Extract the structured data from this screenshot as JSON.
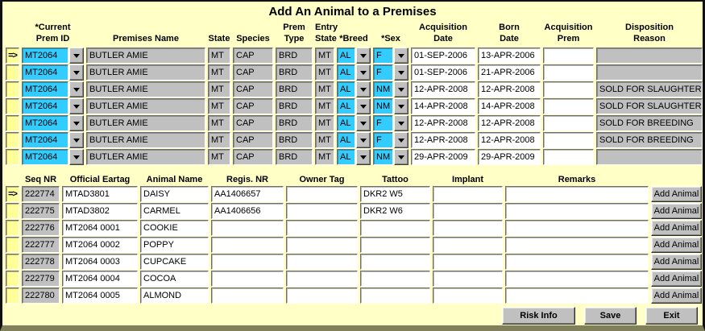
{
  "window": {
    "title": "Add An Animal to a Premises"
  },
  "colors": {
    "background": "#FFFFC6",
    "combo_field_cyan": "#33CCFF",
    "readonly_gray": "#C0C0C0",
    "editable_white": "#FFFFFF",
    "row_selector_yellow": "#FFFF99",
    "window_bottom_border": "#80805A"
  },
  "icons": {
    "dropdown_arrow": "down-triangle",
    "selected_row_marker": "=>"
  },
  "premises_grid": {
    "headers": {
      "prem_id": {
        "line1": "*Current",
        "line2": "Prem ID"
      },
      "premises_name": {
        "line1": "",
        "line2": "Premises Name"
      },
      "state": {
        "line1": "",
        "line2": "State"
      },
      "species": {
        "line1": "",
        "line2": "Species"
      },
      "prem_type": {
        "line1": "Prem",
        "line2": "Type"
      },
      "entry_state": {
        "line1": "Entry",
        "line2": "State"
      },
      "breed": {
        "line1": "",
        "line2": "*Breed"
      },
      "sex": {
        "line1": "",
        "line2": "*Sex"
      },
      "acquisition_date": {
        "line1": "Acquisition",
        "line2": "Date"
      },
      "born_date": {
        "line1": "Born",
        "line2": "Date"
      },
      "acquisition_prem": {
        "line1": "Acquisition",
        "line2": "Prem"
      },
      "disposition_reason": {
        "line1": "Disposition",
        "line2": "Reason"
      }
    },
    "rows": [
      {
        "selected": true,
        "prem_id": "MT2064",
        "premises_name": "BUTLER AMIE",
        "state": "MT",
        "species": "CAP",
        "prem_type": "BRD",
        "entry_state": "MT",
        "breed": "AL",
        "sex": "F",
        "acquisition_date": "01-SEP-2006",
        "born_date": "13-APR-2006",
        "acquisition_prem": "",
        "disposition_reason": ""
      },
      {
        "selected": false,
        "prem_id": "MT2064",
        "premises_name": "BUTLER AMIE",
        "state": "MT",
        "species": "CAP",
        "prem_type": "BRD",
        "entry_state": "MT",
        "breed": "AL",
        "sex": "F",
        "acquisition_date": "01-SEP-2006",
        "born_date": "21-APR-2006",
        "acquisition_prem": "",
        "disposition_reason": ""
      },
      {
        "selected": false,
        "prem_id": "MT2064",
        "premises_name": "BUTLER AMIE",
        "state": "MT",
        "species": "CAP",
        "prem_type": "BRD",
        "entry_state": "MT",
        "breed": "AL",
        "sex": "NM",
        "acquisition_date": "12-APR-2008",
        "born_date": "12-APR-2008",
        "acquisition_prem": "",
        "disposition_reason": "SOLD FOR SLAUGHTER"
      },
      {
        "selected": false,
        "prem_id": "MT2064",
        "premises_name": "BUTLER AMIE",
        "state": "MT",
        "species": "CAP",
        "prem_type": "BRD",
        "entry_state": "MT",
        "breed": "AL",
        "sex": "NM",
        "acquisition_date": "14-APR-2008",
        "born_date": "14-APR-2008",
        "acquisition_prem": "",
        "disposition_reason": "SOLD FOR SLAUGHTER"
      },
      {
        "selected": false,
        "prem_id": "MT2064",
        "premises_name": "BUTLER AMIE",
        "state": "MT",
        "species": "CAP",
        "prem_type": "BRD",
        "entry_state": "MT",
        "breed": "AL",
        "sex": "F",
        "acquisition_date": "12-APR-2008",
        "born_date": "12-APR-2008",
        "acquisition_prem": "",
        "disposition_reason": "SOLD FOR BREEDING"
      },
      {
        "selected": false,
        "prem_id": "MT2064",
        "premises_name": "BUTLER AMIE",
        "state": "MT",
        "species": "CAP",
        "prem_type": "BRD",
        "entry_state": "MT",
        "breed": "AL",
        "sex": "F",
        "acquisition_date": "12-APR-2008",
        "born_date": "12-APR-2008",
        "acquisition_prem": "",
        "disposition_reason": "SOLD FOR BREEDING"
      },
      {
        "selected": false,
        "prem_id": "MT2064",
        "premises_name": "BUTLER AMIE",
        "state": "MT",
        "species": "CAP",
        "prem_type": "BRD",
        "entry_state": "MT",
        "breed": "AL",
        "sex": "NM",
        "acquisition_date": "29-APR-2009",
        "born_date": "29-APR-2009",
        "acquisition_prem": "",
        "disposition_reason": ""
      }
    ]
  },
  "animals_grid": {
    "headers": [
      "Seq NR",
      "Official Eartag",
      "Animal Name",
      "Regis. NR",
      "Owner Tag",
      "Tattoo",
      "Implant",
      "Remarks"
    ],
    "add_button_label": "Add Animal",
    "rows": [
      {
        "selected": true,
        "seq_nr": "222774",
        "official_eartag": "MTAD3801",
        "animal_name": "DAISY",
        "regis_nr": "AA1406657",
        "owner_tag": "",
        "tattoo": "DKR2 W5",
        "implant": "",
        "remarks": ""
      },
      {
        "selected": false,
        "seq_nr": "222775",
        "official_eartag": "MTAD3802",
        "animal_name": "CARMEL",
        "regis_nr": "AA1406656",
        "owner_tag": "",
        "tattoo": "DKR2 W6",
        "implant": "",
        "remarks": ""
      },
      {
        "selected": false,
        "seq_nr": "222776",
        "official_eartag": "MT2064 0001",
        "animal_name": "COOKIE",
        "regis_nr": "",
        "owner_tag": "",
        "tattoo": "",
        "implant": "",
        "remarks": ""
      },
      {
        "selected": false,
        "seq_nr": "222777",
        "official_eartag": "MT2064 0002",
        "animal_name": "POPPY",
        "regis_nr": "",
        "owner_tag": "",
        "tattoo": "",
        "implant": "",
        "remarks": ""
      },
      {
        "selected": false,
        "seq_nr": "222778",
        "official_eartag": "MT2064 0003",
        "animal_name": "CUPCAKE",
        "regis_nr": "",
        "owner_tag": "",
        "tattoo": "",
        "implant": "",
        "remarks": ""
      },
      {
        "selected": false,
        "seq_nr": "222779",
        "official_eartag": "MT2064 0004",
        "animal_name": "COCOA",
        "regis_nr": "",
        "owner_tag": "",
        "tattoo": "",
        "implant": "",
        "remarks": ""
      },
      {
        "selected": false,
        "seq_nr": "222780",
        "official_eartag": "MT2064 0005",
        "animal_name": "ALMOND",
        "regis_nr": "",
        "owner_tag": "",
        "tattoo": "",
        "implant": "",
        "remarks": ""
      }
    ]
  },
  "footer": {
    "risk_info_label": "Risk Info",
    "save_label": "Save",
    "exit_label": "Exit"
  }
}
